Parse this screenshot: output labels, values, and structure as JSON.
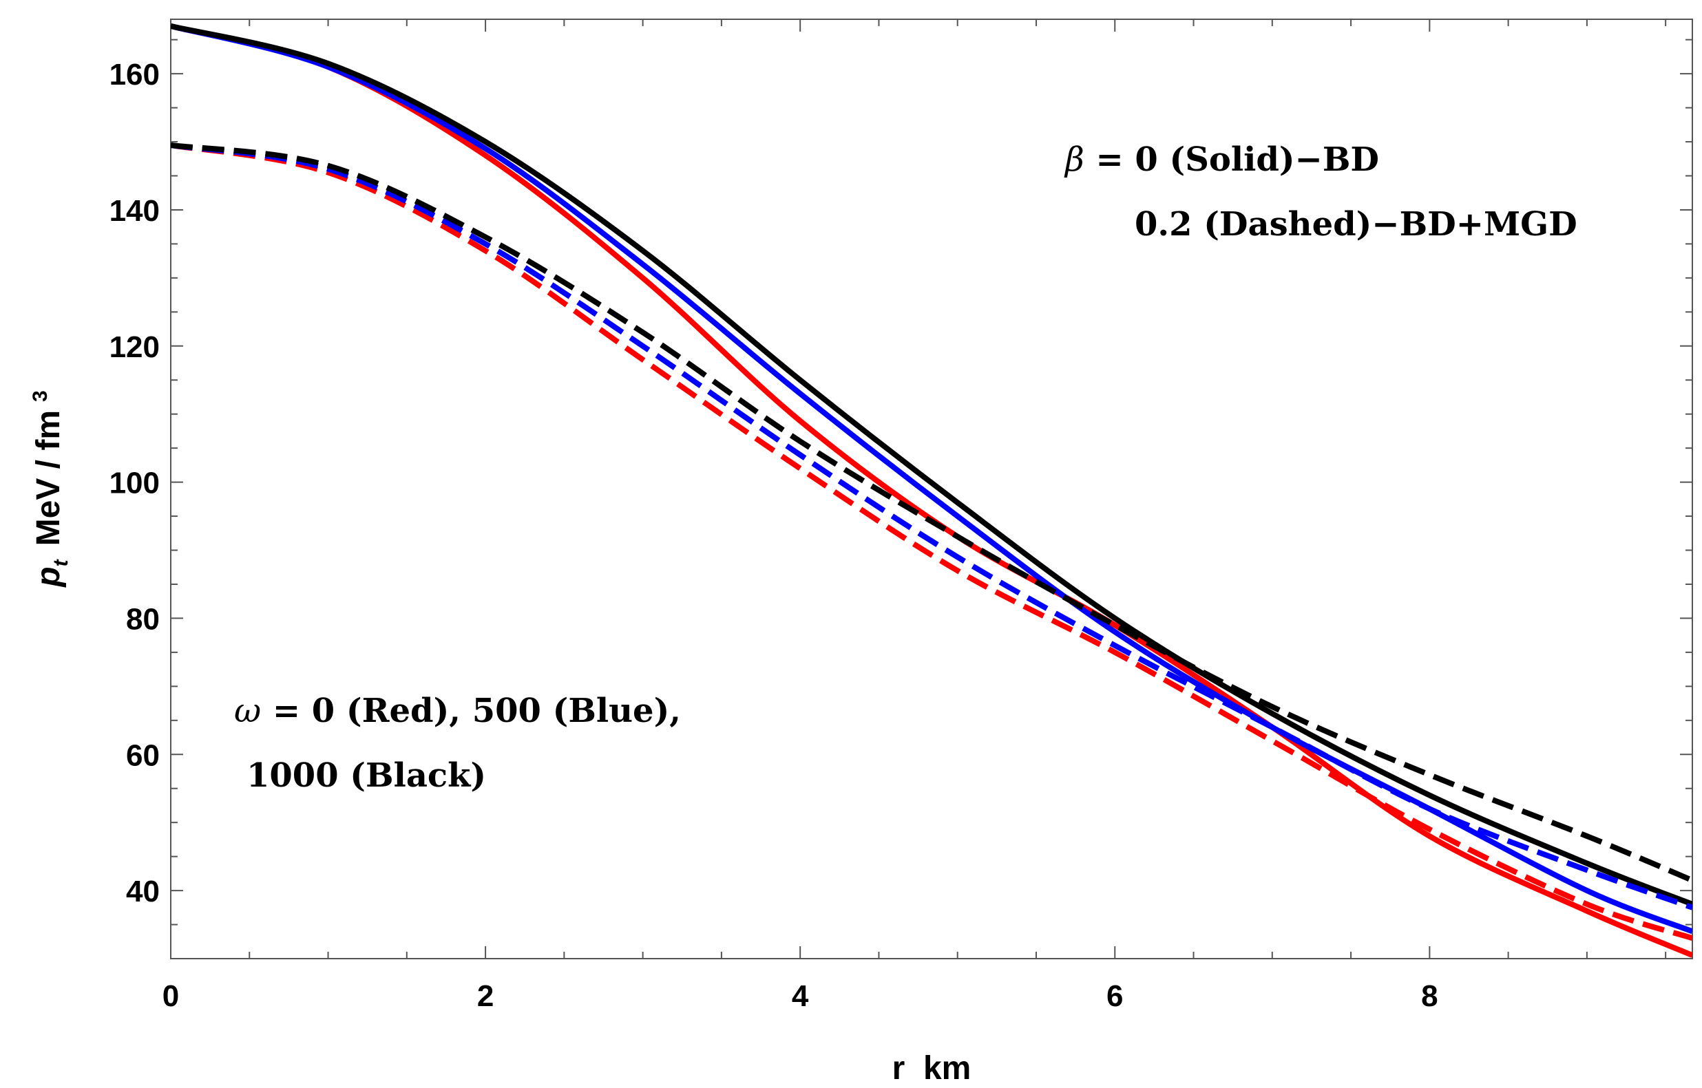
{
  "chart_data": {
    "type": "line",
    "title": "",
    "xlabel": "r  km",
    "ylabel": {
      "main": "p",
      "sub": "t",
      "units": "MeV / fm",
      "sup": "3"
    },
    "xlim": [
      0,
      9.67
    ],
    "ylim": [
      30,
      168
    ],
    "xticks": [
      0,
      2,
      4,
      6,
      8
    ],
    "yticks": [
      40,
      60,
      80,
      100,
      120,
      140,
      160
    ],
    "xtick_labels": [
      "0",
      "2",
      "4",
      "6",
      "8"
    ],
    "ytick_labels": [
      "40",
      "60",
      "80",
      "100",
      "120",
      "140",
      "160"
    ],
    "x": [
      0,
      1,
      2,
      3,
      4,
      5,
      6,
      7,
      8,
      9,
      9.67
    ],
    "series": [
      {
        "name": "ω=0, β=0 (Red Solid)",
        "color": "#ff0000",
        "dash": "solid",
        "values": [
          167,
          161,
          148,
          130,
          109,
          92,
          79,
          64,
          48,
          37,
          30.5
        ]
      },
      {
        "name": "ω=500, β=0 (Blue Solid)",
        "color": "#0000ff",
        "dash": "solid",
        "values": [
          167,
          161,
          149,
          132,
          113,
          95,
          78,
          64,
          52,
          40,
          34
        ]
      },
      {
        "name": "ω=1000, β=0 (Black Solid)",
        "color": "#000000",
        "dash": "solid",
        "values": [
          167,
          161.5,
          150,
          134,
          115,
          97,
          80,
          66,
          54,
          44,
          38
        ]
      },
      {
        "name": "ω=0, β=0.2 (Red Dashed)",
        "color": "#ff0000",
        "dash": "dashed",
        "values": [
          149.5,
          145.5,
          134,
          118,
          102,
          87,
          75,
          62,
          49,
          38,
          33
        ]
      },
      {
        "name": "ω=500, β=0.2 (Blue Dashed)",
        "color": "#0000ff",
        "dash": "dashed",
        "values": [
          149.5,
          146,
          135,
          120,
          104,
          89,
          76,
          64,
          52,
          43,
          37.5
        ]
      },
      {
        "name": "ω=1000, β=0.2 (Black Dashed)",
        "color": "#000000",
        "dash": "dashed",
        "values": [
          149.5,
          146.5,
          136,
          122,
          106,
          92,
          79,
          67,
          57,
          48,
          41.5
        ]
      }
    ],
    "annotations": {
      "beta_line1": "β = 0 (Solid)−BD",
      "beta_line2": "0.2 (Dashed)−BD+MGD",
      "omega_line1": "ω = 0 (Red), 500 (Blue),",
      "omega_line2": "1000 (Black)"
    }
  }
}
